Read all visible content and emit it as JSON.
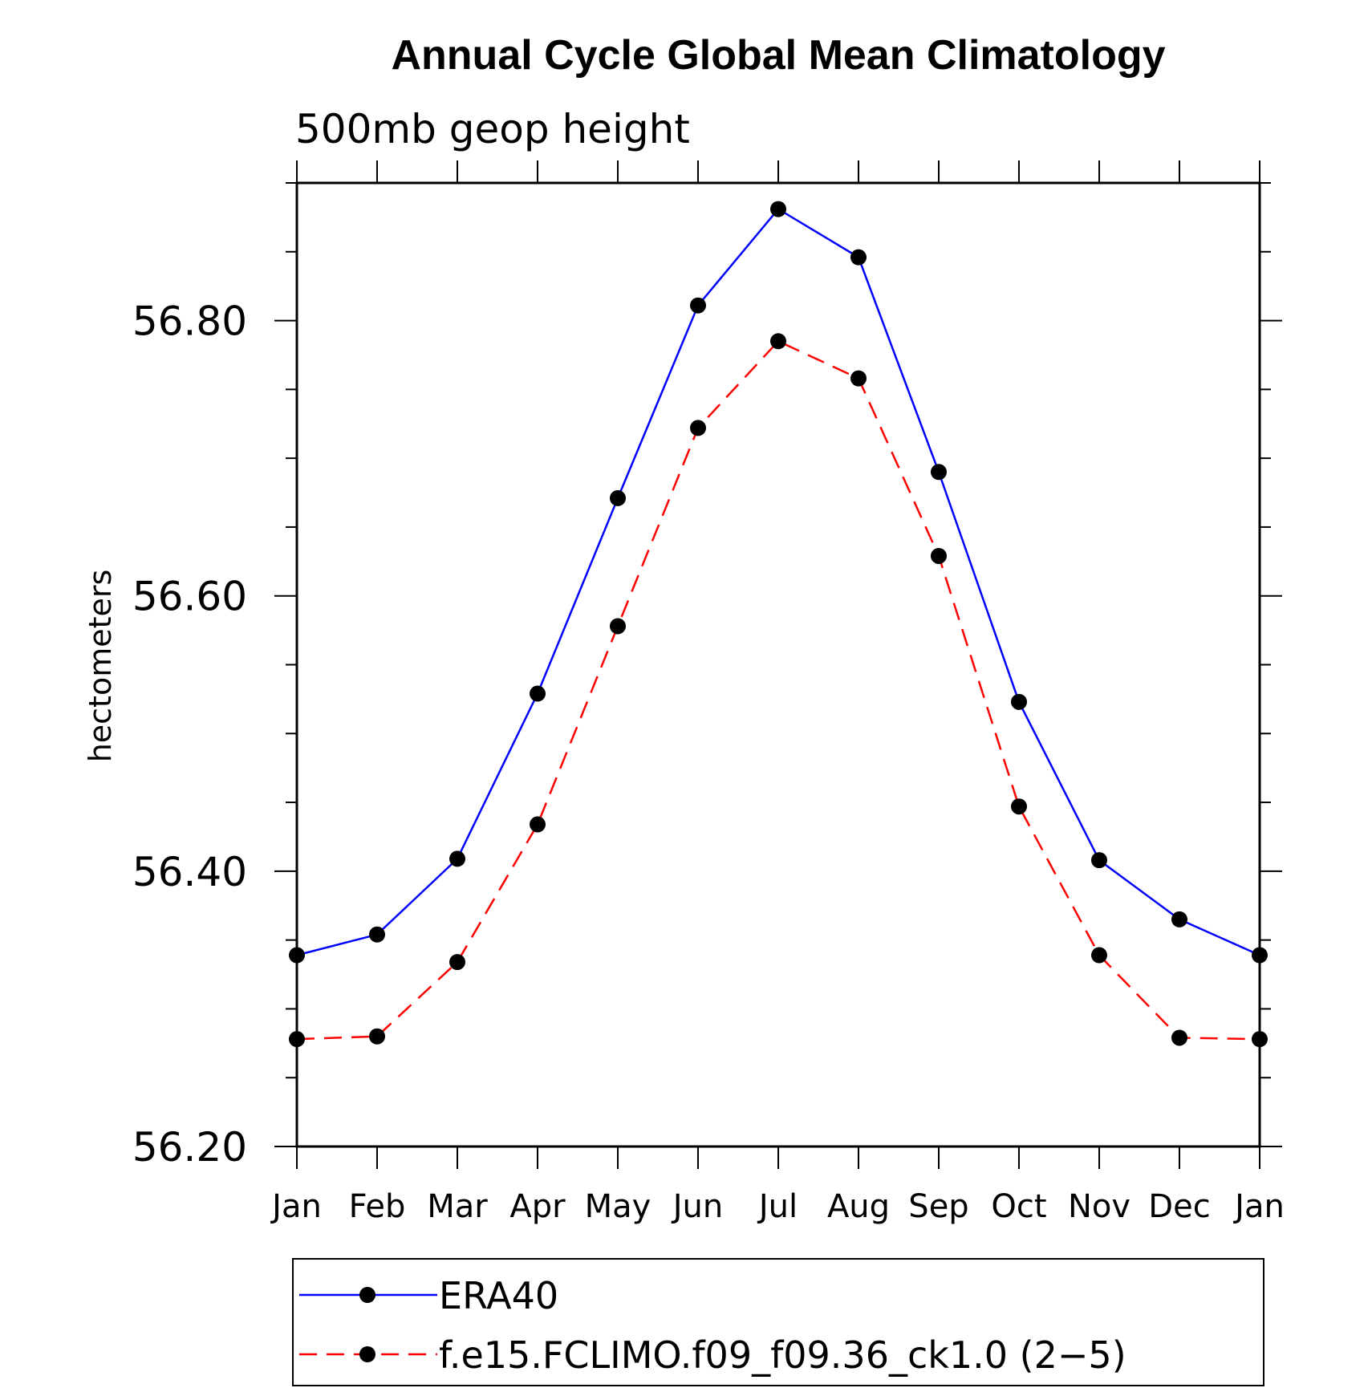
{
  "chart_data": {
    "type": "line",
    "title": "Annual Cycle Global Mean Climatology",
    "subtitle": "500mb geop height",
    "xlabel": "",
    "ylabel": "hectometers",
    "categories": [
      "Jan",
      "Feb",
      "Mar",
      "Apr",
      "May",
      "Jun",
      "Jul",
      "Aug",
      "Sep",
      "Oct",
      "Nov",
      "Dec",
      "Jan"
    ],
    "ylim": [
      56.2,
      56.9
    ],
    "yticks": [
      56.2,
      56.4,
      56.6,
      56.8
    ],
    "ytick_labels": [
      "56.20",
      "56.40",
      "56.60",
      "56.80"
    ],
    "grid": false,
    "legend_position": "bottom",
    "series": [
      {
        "name": "ERA40",
        "color": "#0000ff",
        "line_style": "solid",
        "marker": "filled-circle",
        "values": [
          56.339,
          56.354,
          56.409,
          56.529,
          56.671,
          56.811,
          56.881,
          56.846,
          56.69,
          56.523,
          56.408,
          56.365,
          56.339
        ]
      },
      {
        "name": "f.e15.FCLIMO.f09_f09.36_ck1.0 (2−5)",
        "color": "#ff0000",
        "line_style": "dashed",
        "marker": "filled-circle",
        "values": [
          56.278,
          56.28,
          56.334,
          56.434,
          56.578,
          56.722,
          56.785,
          56.758,
          56.629,
          56.447,
          56.339,
          56.279,
          56.278
        ]
      }
    ]
  }
}
